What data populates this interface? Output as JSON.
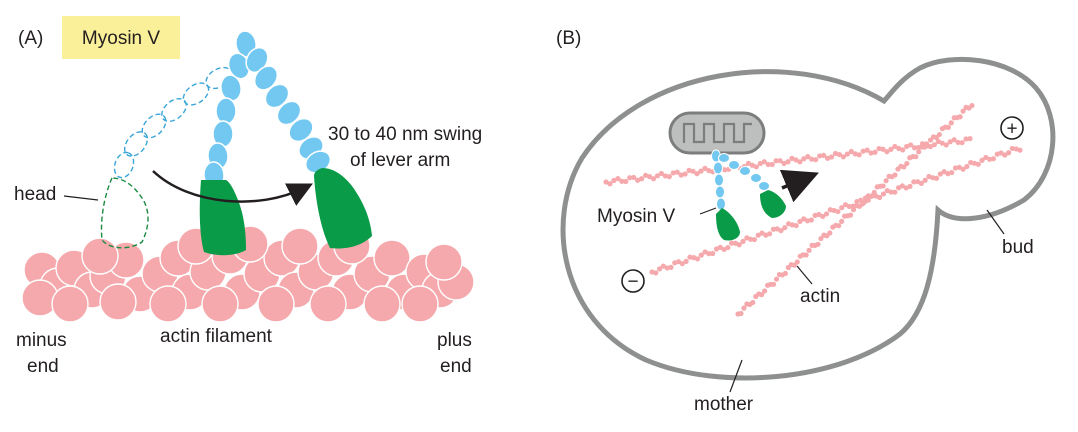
{
  "panel_a": {
    "panel_label": "(A)",
    "title": "Myosin V",
    "labels": {
      "head": "head",
      "swing_line1": "30 to 40 nm swing",
      "swing_line2": "of lever arm",
      "minus_line1": "minus",
      "minus_line2": "end",
      "filament": "actin filament",
      "plus_line1": "plus",
      "plus_line2": "end"
    }
  },
  "panel_b": {
    "panel_label": "(B)",
    "labels": {
      "plus_symbol": "+",
      "minus_symbol": "−",
      "myosin": "Myosin V",
      "bud": "bud",
      "actin": "actin",
      "mother": "mother"
    }
  },
  "colors": {
    "title_highlight": "#fbf09a",
    "lever_blue": "#72c8f1",
    "motor_green": "#0a9b48",
    "actin_pink": "#f5a9ac",
    "cell_outline": "#8e908f",
    "mito_fill": "#bdbfbe",
    "arrow": "#231f20"
  }
}
